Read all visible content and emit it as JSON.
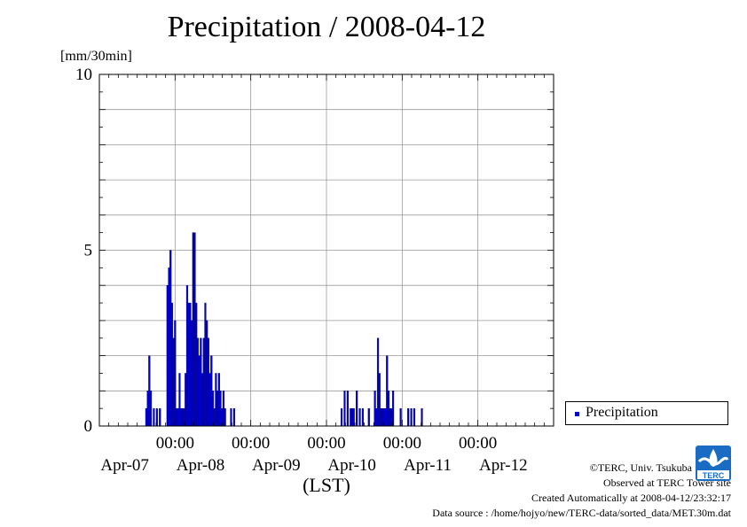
{
  "chart_data": {
    "type": "bar",
    "title": "Precipitation / 2008-04-12",
    "y_unit": "[mm/30min]",
    "xlabel": "(LST)",
    "ylim": [
      0,
      10
    ],
    "y_ticks": [
      {
        "value": 0,
        "label": "0"
      },
      {
        "value": 5,
        "label": "5"
      },
      {
        "value": 10,
        "label": "10"
      }
    ],
    "x_range_days": [
      0,
      6
    ],
    "x_time_ticks": [
      {
        "day": 1.0,
        "label": "00:00"
      },
      {
        "day": 2.0,
        "label": "00:00"
      },
      {
        "day": 3.0,
        "label": "00:00"
      },
      {
        "day": 4.0,
        "label": "00:00"
      },
      {
        "day": 5.0,
        "label": "00:00"
      }
    ],
    "x_date_labels": [
      {
        "day": 0.5,
        "label": "Apr-07"
      },
      {
        "day": 1.5,
        "label": "Apr-08"
      },
      {
        "day": 2.5,
        "label": "Apr-09"
      },
      {
        "day": 3.5,
        "label": "Apr-10"
      },
      {
        "day": 4.5,
        "label": "Apr-11"
      },
      {
        "day": 5.5,
        "label": "Apr-12"
      }
    ],
    "grid": true,
    "legend_position": "right",
    "series": [
      {
        "name": "Precipitation",
        "color": "#0000cc",
        "bar_width_days": 0.0208,
        "points": [
          [
            0.62,
            0.5
          ],
          [
            0.64,
            1.0
          ],
          [
            0.66,
            2.0
          ],
          [
            0.68,
            1.0
          ],
          [
            0.72,
            0.5
          ],
          [
            0.76,
            0.5
          ],
          [
            0.8,
            0.5
          ],
          [
            0.9,
            4.0
          ],
          [
            0.92,
            4.5
          ],
          [
            0.94,
            5.0
          ],
          [
            0.96,
            3.5
          ],
          [
            0.98,
            2.5
          ],
          [
            1.0,
            3.0
          ],
          [
            1.02,
            0.5
          ],
          [
            1.04,
            0.5
          ],
          [
            1.06,
            1.5
          ],
          [
            1.08,
            0.5
          ],
          [
            1.1,
            0.5
          ],
          [
            1.12,
            0.5
          ],
          [
            1.14,
            1.5
          ],
          [
            1.16,
            4.0
          ],
          [
            1.18,
            3.5
          ],
          [
            1.2,
            3.5
          ],
          [
            1.22,
            3.0
          ],
          [
            1.24,
            5.5
          ],
          [
            1.26,
            5.5
          ],
          [
            1.28,
            3.5
          ],
          [
            1.3,
            2.5
          ],
          [
            1.32,
            2.0
          ],
          [
            1.34,
            2.5
          ],
          [
            1.36,
            1.5
          ],
          [
            1.38,
            2.5
          ],
          [
            1.4,
            3.5
          ],
          [
            1.42,
            3.0
          ],
          [
            1.44,
            2.5
          ],
          [
            1.46,
            1.5
          ],
          [
            1.48,
            2.0
          ],
          [
            1.5,
            1.0
          ],
          [
            1.52,
            0.5
          ],
          [
            1.54,
            1.5
          ],
          [
            1.56,
            1.0
          ],
          [
            1.58,
            1.5
          ],
          [
            1.6,
            1.0
          ],
          [
            1.62,
            0.5
          ],
          [
            1.64,
            1.0
          ],
          [
            1.66,
            0.5
          ],
          [
            1.74,
            0.5
          ],
          [
            1.78,
            0.5
          ],
          [
            3.2,
            0.5
          ],
          [
            3.24,
            1.0
          ],
          [
            3.28,
            1.0
          ],
          [
            3.32,
            0.5
          ],
          [
            3.34,
            0.5
          ],
          [
            3.36,
            0.5
          ],
          [
            3.4,
            1.0
          ],
          [
            3.44,
            0.5
          ],
          [
            3.48,
            0.5
          ],
          [
            3.56,
            0.5
          ],
          [
            3.64,
            1.0
          ],
          [
            3.66,
            0.5
          ],
          [
            3.68,
            2.5
          ],
          [
            3.7,
            1.5
          ],
          [
            3.72,
            0.5
          ],
          [
            3.74,
            0.5
          ],
          [
            3.76,
            0.5
          ],
          [
            3.78,
            0.5
          ],
          [
            3.8,
            2.0
          ],
          [
            3.82,
            1.0
          ],
          [
            3.84,
            0.5
          ],
          [
            3.86,
            0.5
          ],
          [
            3.88,
            1.0
          ],
          [
            3.98,
            0.5
          ],
          [
            4.08,
            0.5
          ],
          [
            4.12,
            0.5
          ],
          [
            4.16,
            0.5
          ],
          [
            4.26,
            0.5
          ]
        ]
      }
    ]
  },
  "credits": {
    "line1": "©TERC, Univ. Tsukuba",
    "line2": "Observed at TERC Tower site",
    "line3": "Created Automatically at 2008-04-12/23:32:17",
    "line4": "Data source : /home/hojyo/new/TERC-data/sorted_data/MET.30m.dat"
  },
  "logo": {
    "text": "TERC",
    "color": "#1a6bc4"
  }
}
